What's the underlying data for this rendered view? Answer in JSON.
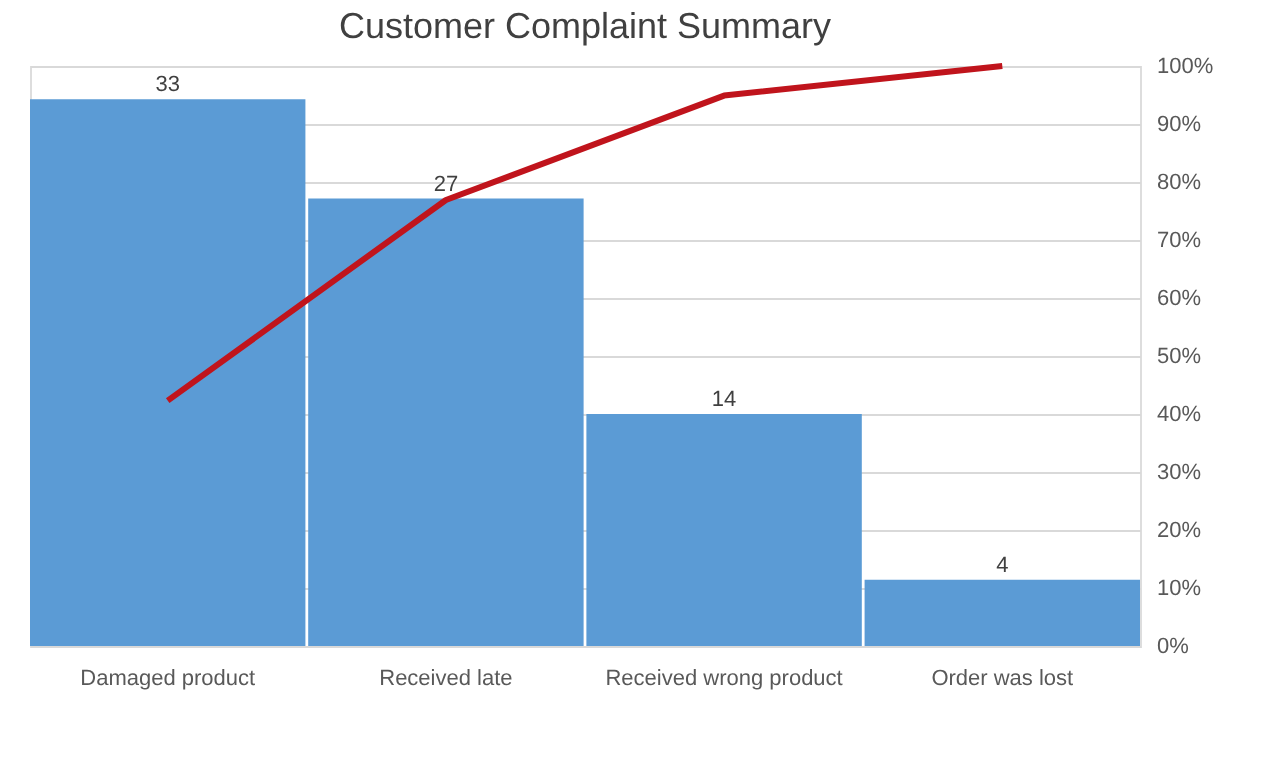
{
  "chart_data": {
    "type": "bar",
    "title": "Customer Complaint Summary",
    "categories": [
      "Damaged product",
      "Received late",
      "Received wrong product",
      "Order was lost"
    ],
    "series": [
      {
        "color": "#5b9bd5",
        "values": [
          33,
          27,
          14,
          4
        ],
        "value_labels": [
          "33",
          "27",
          "14",
          "4"
        ]
      },
      {
        "type": "line",
        "axis": "y2",
        "color": "#c0141c",
        "values": [
          42.3,
          76.9,
          94.9,
          100
        ]
      }
    ],
    "ylim": [
      0,
      35
    ],
    "y2lim": [
      0,
      100
    ],
    "y2ticks": [
      {
        "value": 0,
        "label": "0%"
      },
      {
        "value": 10,
        "label": "10%"
      },
      {
        "value": 20,
        "label": "20%"
      },
      {
        "value": 30,
        "label": "30%"
      },
      {
        "value": 40,
        "label": "40%"
      },
      {
        "value": 50,
        "label": "50%"
      },
      {
        "value": 60,
        "label": "60%"
      },
      {
        "value": 70,
        "label": "70%"
      },
      {
        "value": 80,
        "label": "80%"
      },
      {
        "value": 90,
        "label": "90%"
      },
      {
        "value": 100,
        "label": "100%"
      }
    ],
    "grid": true,
    "marker": "none",
    "line_style": "solid"
  }
}
